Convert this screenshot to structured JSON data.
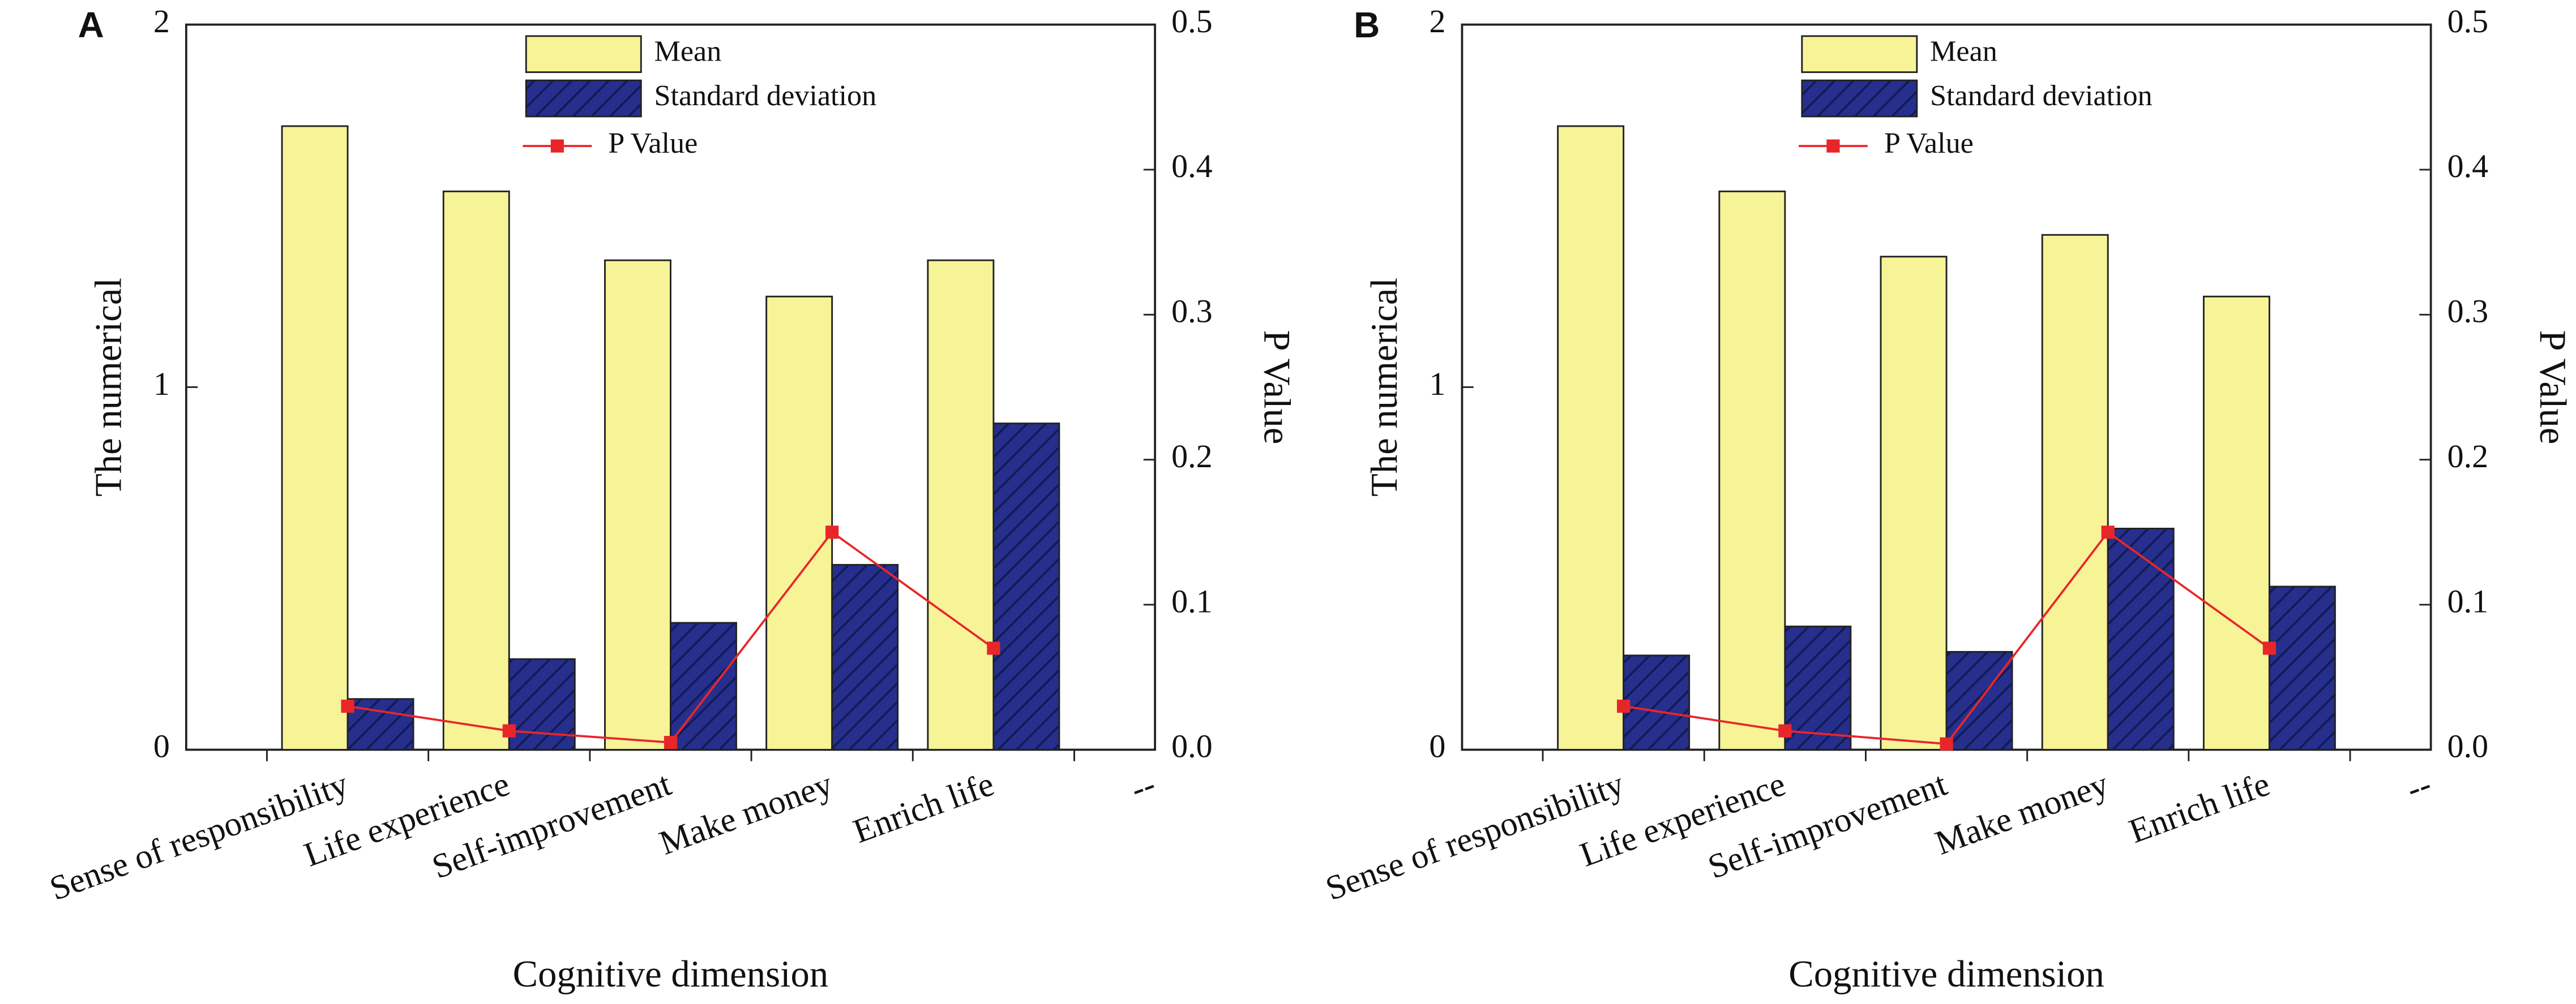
{
  "chart_data": [
    {
      "type": "bar",
      "panel_label": "A",
      "xlabel": "Cognitive dimension",
      "ylabel": "The numerical",
      "y2label": "P Value",
      "categories": [
        "Sense of responsibility",
        "Life experience",
        "Self-improvement",
        "Make money",
        "Enrich life",
        "--"
      ],
      "series": [
        {
          "name": "Mean",
          "color": "#f7f397",
          "values": [
            1.72,
            1.54,
            1.35,
            1.25,
            1.35,
            null
          ]
        },
        {
          "name": "Standard deviation",
          "color": "#262f8c",
          "hatch": true,
          "values": [
            0.14,
            0.25,
            0.35,
            0.51,
            0.9,
            null
          ]
        },
        {
          "name": "P Value",
          "color": "#e8262a",
          "type": "line",
          "axis": "y2",
          "values": [
            0.03,
            0.013,
            0.005,
            0.15,
            0.07,
            null
          ]
        }
      ],
      "ylim": [
        0,
        2
      ],
      "yticks": [
        0,
        1,
        2
      ],
      "y2lim": [
        0,
        0.5
      ],
      "y2ticks": [
        {
          "value": 0,
          "label": "0.0"
        },
        0.1,
        0.2,
        0.3,
        0.4,
        0.5
      ],
      "legend": "top"
    },
    {
      "type": "bar",
      "panel_label": "B",
      "xlabel": "Cognitive dimension",
      "ylabel": "The numerical",
      "y2label": "P Value",
      "categories": [
        "Sense of responsibility",
        "Life experience",
        "Self-improvement",
        "Make money",
        "Enrich life",
        "--"
      ],
      "series": [
        {
          "name": "Mean",
          "color": "#f7f397",
          "values": [
            1.72,
            1.54,
            1.36,
            1.42,
            1.25,
            null
          ]
        },
        {
          "name": "Standard deviation",
          "color": "#262f8c",
          "hatch": true,
          "values": [
            0.26,
            0.34,
            0.27,
            0.61,
            0.45,
            null
          ]
        },
        {
          "name": "P Value",
          "color": "#e8262a",
          "type": "line",
          "axis": "y2",
          "values": [
            0.03,
            0.013,
            0.004,
            0.15,
            0.07,
            null
          ]
        }
      ],
      "ylim": [
        0,
        2
      ],
      "yticks": [
        0,
        1,
        2
      ],
      "y2lim": [
        0,
        0.5
      ],
      "y2ticks": [
        {
          "value": 0,
          "label": "0.0"
        },
        0.1,
        0.2,
        0.3,
        0.4,
        0.5
      ],
      "legend": "top"
    }
  ]
}
